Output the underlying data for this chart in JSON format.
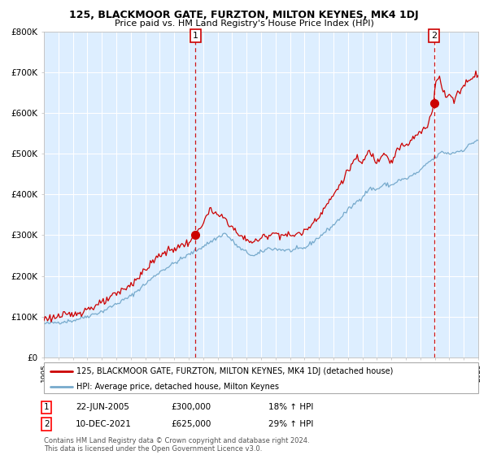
{
  "title": "125, BLACKMOOR GATE, FURZTON, MILTON KEYNES, MK4 1DJ",
  "subtitle": "Price paid vs. HM Land Registry's House Price Index (HPI)",
  "legend_line1": "125, BLACKMOOR GATE, FURZTON, MILTON KEYNES, MK4 1DJ (detached house)",
  "legend_line2": "HPI: Average price, detached house, Milton Keynes",
  "annotation1_date": "22-JUN-2005",
  "annotation1_price": "£300,000",
  "annotation1_hpi": "18% ↑ HPI",
  "annotation2_date": "10-DEC-2021",
  "annotation2_price": "£625,000",
  "annotation2_hpi": "29% ↑ HPI",
  "footer": "Contains HM Land Registry data © Crown copyright and database right 2024.\nThis data is licensed under the Open Government Licence v3.0.",
  "red_color": "#cc0000",
  "blue_color": "#77aacc",
  "background_color": "#ddeeff",
  "grid_color": "#ffffff",
  "ylim": [
    0,
    800000
  ],
  "yticks": [
    0,
    100000,
    200000,
    300000,
    400000,
    500000,
    600000,
    700000,
    800000
  ],
  "ytick_labels": [
    "£0",
    "£100K",
    "£200K",
    "£300K",
    "£400K",
    "£500K",
    "£600K",
    "£700K",
    "£800K"
  ],
  "sale1_year": 2005.47,
  "sale1_value": 300000,
  "sale2_year": 2021.94,
  "sale2_value": 625000,
  "xstart": 1995,
  "xend": 2025
}
